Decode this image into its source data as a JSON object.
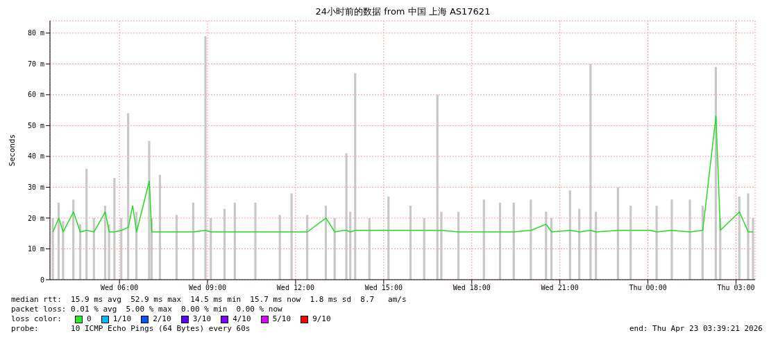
{
  "chart_data": {
    "type": "line",
    "title": "24小时前的数据 from 中国 上海 AS17621",
    "ylabel": "Seconds",
    "x": [
      "2026-04-22T03:44",
      "2026-04-22T03:56",
      "2026-04-22T04:05",
      "2026-04-22T04:26",
      "2026-04-22T04:40",
      "2026-04-22T04:53",
      "2026-04-22T05:08",
      "2026-04-22T05:31",
      "2026-04-22T05:39",
      "2026-04-22T05:50",
      "2026-04-22T06:04",
      "2026-04-22T06:18",
      "2026-04-22T06:27",
      "2026-04-22T06:35",
      "2026-04-22T07:01",
      "2026-04-22T07:06",
      "2026-04-22T07:23",
      "2026-04-22T07:57",
      "2026-04-22T08:31",
      "2026-04-22T08:56",
      "2026-04-22T09:07",
      "2026-04-22T09:35",
      "2026-04-22T09:56",
      "2026-04-22T10:38",
      "2026-04-22T11:28",
      "2026-04-22T11:52",
      "2026-04-22T12:24",
      "2026-04-22T13:02",
      "2026-04-22T13:20",
      "2026-04-22T13:38",
      "2026-04-22T13:44",
      "2026-04-22T13:52",
      "2026-04-22T14:02",
      "2026-04-22T14:31",
      "2026-04-22T15:10",
      "2026-04-22T15:32",
      "2026-04-22T15:55",
      "2026-04-22T16:23",
      "2026-04-22T16:50",
      "2026-04-22T16:58",
      "2026-04-22T17:33",
      "2026-04-22T18:25",
      "2026-04-22T18:58",
      "2026-04-22T19:26",
      "2026-04-22T20:01",
      "2026-04-22T20:32",
      "2026-04-22T20:43",
      "2026-04-22T21:21",
      "2026-04-22T21:40",
      "2026-04-22T22:03",
      "2026-04-22T22:14",
      "2026-04-22T22:59",
      "2026-04-22T23:25",
      "2026-04-23T00:05",
      "2026-04-23T00:18",
      "2026-04-23T00:49",
      "2026-04-23T01:26",
      "2026-04-23T01:52",
      "2026-04-23T02:19",
      "2026-04-23T02:28",
      "2026-04-23T03:07",
      "2026-04-23T03:25",
      "2026-04-23T03:35"
    ],
    "series": [
      {
        "type": "bar",
        "color": "#c8c8c8",
        "values": [
          20,
          25,
          19,
          26,
          18,
          36,
          20,
          24,
          18,
          33,
          20,
          54,
          null,
          22,
          45,
          20,
          34,
          21,
          25,
          79,
          20,
          23,
          25,
          25,
          21,
          28,
          21,
          24,
          20,
          null,
          41,
          22,
          67,
          20,
          27,
          null,
          24,
          20,
          60,
          22,
          22,
          26,
          25,
          25,
          26,
          22,
          20,
          29,
          23,
          70,
          22,
          30,
          24,
          null,
          24,
          26,
          26,
          24,
          69,
          20,
          27,
          28,
          20
        ]
      },
      {
        "color": "#22dd22",
        "values": [
          15.5,
          20,
          15.5,
          22,
          15.5,
          16,
          15.5,
          22,
          15.5,
          15.5,
          16,
          17,
          24,
          15.5,
          32,
          15.5,
          15.5,
          15.5,
          15.5,
          16,
          15.5,
          15.5,
          15.5,
          15.5,
          15.5,
          15.5,
          15.5,
          20,
          15.5,
          16,
          16,
          15.5,
          16,
          16,
          16,
          16,
          16,
          16,
          16,
          16,
          15.5,
          15.5,
          15.5,
          15.5,
          16,
          18,
          15.5,
          16,
          15.5,
          16,
          15.5,
          16,
          16,
          16,
          15.5,
          16,
          15.5,
          16,
          53,
          16,
          22,
          15.5,
          15.5
        ]
      }
    ],
    "xlim": [
      "2026-04-22T03:38",
      "2026-04-23T03:39"
    ],
    "xticks": [
      {
        "value": "2026-04-22T06:00",
        "label": "Wed 06:00"
      },
      {
        "value": "2026-04-22T09:00",
        "label": "Wed 09:00"
      },
      {
        "value": "2026-04-22T12:00",
        "label": "Wed 12:00"
      },
      {
        "value": "2026-04-22T15:00",
        "label": "Wed 15:00"
      },
      {
        "value": "2026-04-22T18:00",
        "label": "Wed 18:00"
      },
      {
        "value": "2026-04-22T21:00",
        "label": "Wed 21:00"
      },
      {
        "value": "2026-04-23T00:00",
        "label": "Thu 00:00"
      },
      {
        "value": "2026-04-23T03:00",
        "label": "Thu 03:00"
      }
    ],
    "ylim": [
      0,
      84
    ],
    "yticks": [
      0,
      {
        "value": 10,
        "label": "10 m"
      },
      {
        "value": 20,
        "label": "20 m"
      },
      {
        "value": 30,
        "label": "30 m"
      },
      {
        "value": 40,
        "label": "40 m"
      },
      {
        "value": 50,
        "label": "50 m"
      },
      {
        "value": 60,
        "label": "60 m"
      },
      {
        "value": 70,
        "label": "70 m"
      },
      {
        "value": 80,
        "label": "80 m"
      }
    ],
    "grid": true,
    "legend": false,
    "marker": "none",
    "annotations": [
      "median rtt:  15.9 ms avg  52.9 ms max  14.5 ms min  15.7 ms now  1.8 ms sd  8.7   am/s",
      "packet loss: 0.01 % avg  5.00 % max  0.00 % min  0.00 % now",
      "loss color:",
      "0",
      "1/10",
      "2/10",
      "3/10",
      "4/10",
      "5/10",
      "9/10",
      "probe:       10 ICMP Echo Pings (64 Bytes) every 60s",
      "end: Thu Apr 23 03:39:21 2026"
    ]
  }
}
